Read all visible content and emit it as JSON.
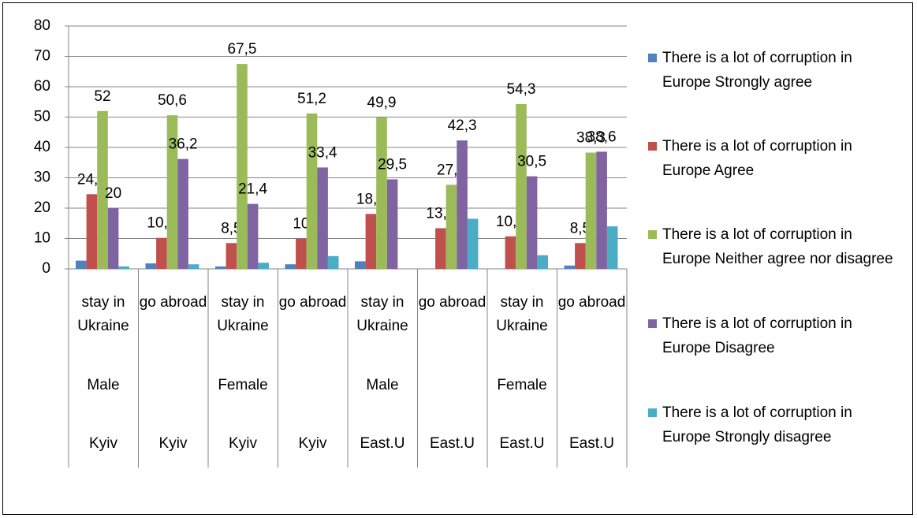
{
  "chart_data": {
    "type": "bar",
    "categories": [
      "stay in Ukraine",
      "go abroad",
      "stay in Ukraine",
      "go abroad",
      "stay in Ukraine",
      "go abroad",
      "stay in Ukraine",
      "go abroad"
    ],
    "categories_level2": [
      "Male",
      null,
      "Female",
      null,
      "Male",
      null,
      "Female",
      null
    ],
    "categories_level3": [
      "Kyiv",
      "Kyiv",
      "Kyiv",
      "Kyiv",
      "East.U",
      "East.U",
      "East.U",
      "East.U"
    ],
    "series": [
      {
        "name": "There is a lot of corruption in Europe Strongly agree",
        "color": "#4f81bd",
        "values": [
          2.7,
          1.8,
          0.8,
          1.5,
          2.5,
          0,
          0,
          1.1
        ]
      },
      {
        "name": "There is a lot of corruption in Europe Agree",
        "color": "#c0504d",
        "values": [
          24.6,
          10.2,
          8.5,
          10,
          18.1,
          13.4,
          10.7,
          8.5
        ],
        "value_labels": [
          "24,6",
          "10,2",
          "8,5",
          "10",
          "18,1",
          "13,4",
          "10,7",
          "8,5"
        ]
      },
      {
        "name": "There is a lot of corruption in Europe Neither agree nor disagree",
        "color": "#9bbb59",
        "values": [
          52,
          50.6,
          67.5,
          51.2,
          49.9,
          27.7,
          54.3,
          38.3
        ],
        "value_labels": [
          "52",
          "50,6",
          "67,5",
          "51,2",
          "49,9",
          "27,7",
          "54,3",
          "38,3"
        ]
      },
      {
        "name": "There is a lot of corruption in Europe Disagree",
        "color": "#8064a2",
        "values": [
          20,
          36.2,
          21.4,
          33.4,
          29.5,
          42.3,
          30.5,
          38.6
        ],
        "value_labels": [
          "20",
          "36,2",
          "21,4",
          "33,4",
          "29,5",
          "42,3",
          "30,5",
          "38,6"
        ]
      },
      {
        "name": "There is a lot of corruption in Europe Strongly disagree",
        "color": "#4bacc6",
        "values": [
          0.8,
          1.5,
          2,
          4.2,
          0,
          16.5,
          4.5,
          14
        ]
      }
    ],
    "ylim": [
      0,
      80
    ],
    "yticks": [
      0,
      10,
      20,
      30,
      40,
      50,
      60,
      70,
      80
    ],
    "grid": true,
    "legend": "right"
  }
}
